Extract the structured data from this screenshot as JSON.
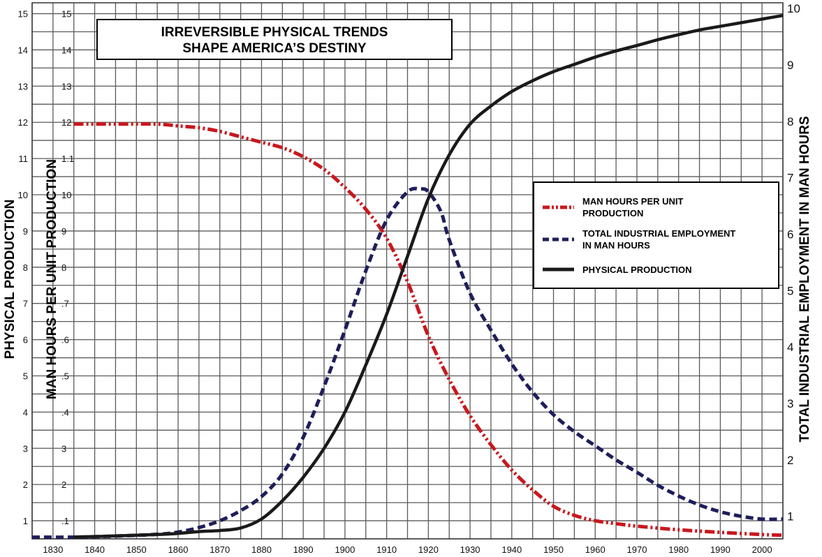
{
  "chart_data": {
    "type": "line",
    "title_lines": [
      "IRREVERSIBLE PHYSICAL TRENDS",
      "SHAPE AMERICA’S DESTINY"
    ],
    "xlabel": "",
    "ylabel_left_outer": "PHYSICAL PRODUCTION",
    "ylabel_left_inner": "MAN HOURS PER UNIT PRODUCTION",
    "ylabel_right": "TOTAL INDUSTRIAL EMPLOYMENT IN MAN HOURS",
    "x_ticks": [
      1830,
      1840,
      1850,
      1860,
      1870,
      1880,
      1890,
      1900,
      1910,
      1920,
      1930,
      1940,
      1950,
      1960,
      1970,
      1980,
      1990,
      2000
    ],
    "xlim": [
      1825,
      2005
    ],
    "y_left_ticks": [
      1,
      2,
      3,
      4,
      5,
      6,
      7,
      8,
      9,
      10,
      11,
      12,
      13,
      14,
      15
    ],
    "y_left_inner_ticks": [
      ".1",
      "2",
      "3",
      ".4",
      ".5",
      ".6",
      ".7",
      "8",
      "9",
      "10",
      "1.1",
      "12",
      "13",
      "14",
      "15"
    ],
    "ylim_left": [
      0.5,
      15.3
    ],
    "y_right_ticks": [
      1,
      2,
      3,
      4,
      5,
      6,
      7,
      8,
      9,
      10
    ],
    "ylim_right": [
      0.6,
      10.1
    ],
    "grid": true,
    "legend_position": "right",
    "series": [
      {
        "name": "MAN HOURS PER UNIT PRODUCTION",
        "axis": "left",
        "color": "#c8181e",
        "style": "dash-dot-dot",
        "x": [
          1835,
          1845,
          1855,
          1860,
          1865,
          1870,
          1875,
          1880,
          1885,
          1890,
          1895,
          1900,
          1905,
          1910,
          1915,
          1920,
          1925,
          1930,
          1935,
          1940,
          1945,
          1950,
          1955,
          1960,
          1965,
          1970,
          1980,
          1990,
          2000,
          2005
        ],
        "values": [
          11.95,
          11.95,
          11.95,
          11.9,
          11.85,
          11.75,
          11.6,
          11.45,
          11.3,
          11.05,
          10.7,
          10.2,
          9.6,
          8.8,
          7.6,
          6.1,
          4.9,
          3.9,
          3.1,
          2.4,
          1.85,
          1.4,
          1.15,
          1.0,
          0.92,
          0.85,
          0.75,
          0.68,
          0.62,
          0.6
        ]
      },
      {
        "name": "TOTAL INDUSTRIAL EMPLOYMENT IN MAN HOURS",
        "axis": "right",
        "color": "#1e1e5a",
        "style": "dashed",
        "x": [
          1825,
          1835,
          1845,
          1855,
          1860,
          1865,
          1870,
          1875,
          1880,
          1885,
          1890,
          1895,
          1900,
          1905,
          1910,
          1915,
          1918,
          1920,
          1923,
          1925,
          1930,
          1935,
          1940,
          1945,
          1950,
          1955,
          1960,
          1965,
          1970,
          1975,
          1980,
          1985,
          1990,
          1995,
          2000,
          2005
        ],
        "values": [
          0.63,
          0.63,
          0.65,
          0.68,
          0.72,
          0.8,
          0.92,
          1.1,
          1.35,
          1.75,
          2.4,
          3.3,
          4.3,
          5.35,
          6.25,
          6.75,
          6.8,
          6.75,
          6.4,
          5.9,
          4.95,
          4.3,
          3.7,
          3.2,
          2.8,
          2.5,
          2.25,
          2.0,
          1.78,
          1.55,
          1.36,
          1.2,
          1.08,
          1.0,
          0.95,
          0.95
        ]
      },
      {
        "name": "PHYSICAL PRODUCTION",
        "axis": "left",
        "color": "#1a1a1a",
        "style": "solid",
        "x": [
          1835,
          1845,
          1855,
          1860,
          1865,
          1870,
          1875,
          1880,
          1885,
          1890,
          1895,
          1900,
          1905,
          1910,
          1915,
          1920,
          1925,
          1930,
          1935,
          1940,
          1945,
          1950,
          1955,
          1960,
          1965,
          1970,
          1975,
          1980,
          1985,
          1990,
          1995,
          2000,
          2005
        ],
        "values": [
          0.55,
          0.58,
          0.62,
          0.65,
          0.7,
          0.73,
          0.8,
          1.05,
          1.55,
          2.2,
          3.0,
          4.0,
          5.3,
          6.7,
          8.3,
          9.9,
          11.1,
          11.95,
          12.45,
          12.85,
          13.15,
          13.4,
          13.6,
          13.8,
          13.97,
          14.12,
          14.28,
          14.42,
          14.55,
          14.65,
          14.75,
          14.85,
          14.95
        ]
      }
    ]
  }
}
